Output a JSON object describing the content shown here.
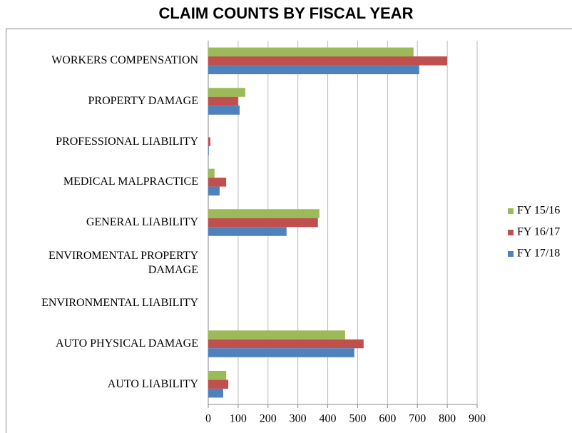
{
  "chart_data": {
    "type": "bar",
    "orientation": "horizontal",
    "title": "CLAIM COUNTS BY FISCAL YEAR",
    "categories": [
      "WORKERS COMPENSATION",
      "PROPERTY DAMAGE",
      "PROFESSIONAL LIABILITY",
      "MEDICAL MALPRACTICE",
      "GENERAL LIABILITY",
      "ENVIROMENTAL PROPERTY DAMAGE",
      "ENVIRONMENTAL LIABILITY",
      "AUTO PHYSICAL DAMAGE",
      "AUTO LIABILITY"
    ],
    "series": [
      {
        "name": "FY 15/16",
        "color": "#9bbb59",
        "values": [
          687,
          124,
          0,
          21,
          372,
          0,
          0,
          458,
          60
        ]
      },
      {
        "name": "FY 16/17",
        "color": "#c0504d",
        "values": [
          800,
          100,
          7,
          60,
          367,
          0,
          0,
          520,
          67
        ]
      },
      {
        "name": "FY 17/18",
        "color": "#4f81bd",
        "values": [
          706,
          105,
          2,
          38,
          262,
          0,
          0,
          489,
          50
        ]
      }
    ],
    "xlim": [
      0,
      900
    ],
    "xticks": [
      0,
      100,
      200,
      300,
      400,
      500,
      600,
      700,
      800,
      900
    ],
    "grid": true,
    "legend": "right"
  }
}
